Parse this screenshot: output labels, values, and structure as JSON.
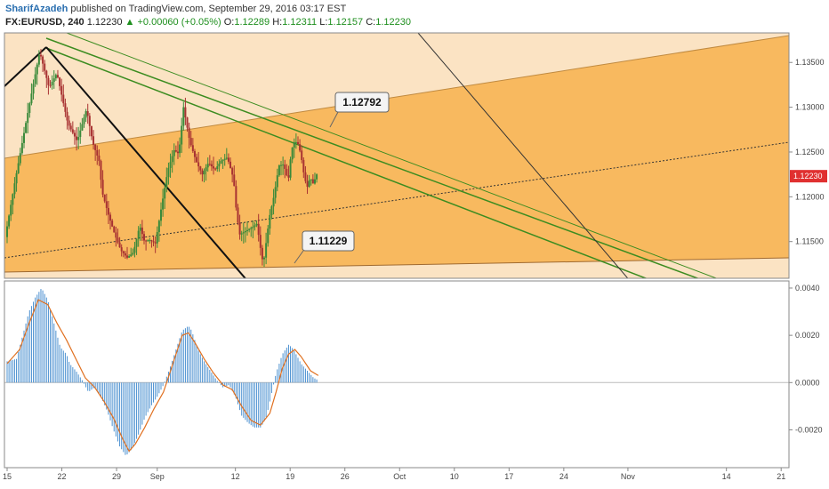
{
  "header": {
    "author": "SharifAzadeh",
    "published": "published on TradingView.com, September 29, 2016 03:17 EST",
    "symbol": "FX:EURUSD, 240",
    "last": "1.12230",
    "change": "+0.00060 (+0.05%)",
    "o_label": "O:",
    "o_value": "1.12289",
    "h_label": "H:",
    "h_value": "1.12311",
    "l_label": "L:",
    "l_value": "1.12157",
    "c_label": "C:",
    "c_value": "1.12230"
  },
  "colors": {
    "channel_fill": "#f8b95f",
    "channel_light": "#fbe3c3",
    "candle_up": "#3a8a3a",
    "candle_down": "#a83232",
    "trend_green": "#3c8c20",
    "hist": "#4b90d0",
    "signal": "#e07020",
    "last_tag": "#e03030"
  },
  "chart_data": [
    {
      "type": "candlestick",
      "y_ticks": [
        "1.13500",
        "1.13000",
        "1.12500",
        "1.12000",
        "1.11500"
      ],
      "ylim": [
        1.1109,
        1.1383
      ],
      "last_price": "1.12230",
      "annotations": [
        {
          "label": "1.12792",
          "value": 1.12792
        },
        {
          "label": "1.11229",
          "value": 1.11229
        }
      ],
      "path": [
        [
          0,
          1.1155
        ],
        [
          6,
          1.1215
        ],
        [
          14,
          1.129
        ],
        [
          22,
          1.1362
        ],
        [
          28,
          1.1322
        ],
        [
          33,
          1.1338
        ],
        [
          40,
          1.1282
        ],
        [
          46,
          1.1262
        ],
        [
          52,
          1.1298
        ],
        [
          56,
          1.126
        ],
        [
          60,
          1.124
        ],
        [
          62,
          1.1205
        ],
        [
          66,
          1.118
        ],
        [
          70,
          1.1158
        ],
        [
          74,
          1.114
        ],
        [
          78,
          1.1132
        ],
        [
          82,
          1.1138
        ],
        [
          86,
          1.1168
        ],
        [
          89,
          1.115
        ],
        [
          92,
          1.1152
        ],
        [
          96,
          1.1148
        ],
        [
          100,
          1.119
        ],
        [
          104,
          1.123
        ],
        [
          108,
          1.1252
        ],
        [
          111,
          1.1248
        ],
        [
          114,
          1.13
        ],
        [
          118,
          1.1262
        ],
        [
          122,
          1.124
        ],
        [
          126,
          1.1225
        ],
        [
          130,
          1.1238
        ],
        [
          134,
          1.123
        ],
        [
          138,
          1.124
        ],
        [
          142,
          1.1244
        ],
        [
          146,
          1.122
        ],
        [
          148,
          1.118
        ],
        [
          150,
          1.1158
        ],
        [
          154,
          1.1162
        ],
        [
          158,
          1.1166
        ],
        [
          161,
          1.117
        ],
        [
          163,
          1.1145
        ],
        [
          165,
          1.1124
        ],
        [
          169,
          1.1178
        ],
        [
          172,
          1.1202
        ],
        [
          175,
          1.1235
        ],
        [
          178,
          1.1236
        ],
        [
          181,
          1.1218
        ],
        [
          183,
          1.1252
        ],
        [
          185,
          1.1262
        ],
        [
          187,
          1.126
        ],
        [
          189,
          1.1248
        ],
        [
          191,
          1.1225
        ],
        [
          193,
          1.121
        ],
        [
          195,
          1.1222
        ],
        [
          197,
          1.1214
        ],
        [
          199,
          1.1225
        ]
      ]
    },
    {
      "type": "bar",
      "indicator": "MACD histogram with signal line",
      "y_ticks": [
        "0.0040",
        "0.0020",
        "0.0000",
        "-0.0020"
      ],
      "ylim": [
        -0.0036,
        0.0043
      ],
      "histogram_path": [
        [
          0,
          0.0009
        ],
        [
          6,
          0.001
        ],
        [
          10,
          0.002
        ],
        [
          14,
          0.003
        ],
        [
          18,
          0.0036
        ],
        [
          22,
          0.004
        ],
        [
          26,
          0.0035
        ],
        [
          30,
          0.0025
        ],
        [
          34,
          0.0015
        ],
        [
          38,
          0.0012
        ],
        [
          40,
          0.0008
        ],
        [
          44,
          0.0005
        ],
        [
          48,
          0.0001
        ],
        [
          52,
          -0.0004
        ],
        [
          56,
          -0.0002
        ],
        [
          60,
          -0.0006
        ],
        [
          64,
          -0.0012
        ],
        [
          68,
          -0.002
        ],
        [
          72,
          -0.0027
        ],
        [
          76,
          -0.0031
        ],
        [
          80,
          -0.0028
        ],
        [
          84,
          -0.0022
        ],
        [
          88,
          -0.0015
        ],
        [
          92,
          -0.001
        ],
        [
          96,
          -0.0006
        ],
        [
          100,
          -0.0001
        ],
        [
          104,
          0.0006
        ],
        [
          108,
          0.0014
        ],
        [
          112,
          0.0022
        ],
        [
          116,
          0.0024
        ],
        [
          118,
          0.0022
        ],
        [
          122,
          0.0014
        ],
        [
          126,
          0.0009
        ],
        [
          130,
          0.0005
        ],
        [
          134,
          0.0001
        ],
        [
          138,
          -0.0002
        ],
        [
          142,
          -0.0001
        ],
        [
          146,
          -0.0006
        ],
        [
          150,
          -0.0014
        ],
        [
          154,
          -0.0017
        ],
        [
          158,
          -0.0019
        ],
        [
          162,
          -0.0019
        ],
        [
          164,
          -0.0017
        ],
        [
          166,
          -0.0014
        ],
        [
          168,
          -0.0008
        ],
        [
          170,
          -0.0002
        ],
        [
          172,
          0.0004
        ],
        [
          174,
          0.0008
        ],
        [
          176,
          0.0012
        ],
        [
          180,
          0.0016
        ],
        [
          182,
          0.0015
        ],
        [
          184,
          0.0013
        ],
        [
          188,
          0.0008
        ],
        [
          192,
          0.0005
        ],
        [
          196,
          0.0002
        ],
        [
          199,
          0.0001
        ]
      ],
      "signal_path": [
        [
          0,
          0.0008
        ],
        [
          8,
          0.0014
        ],
        [
          14,
          0.0025
        ],
        [
          20,
          0.0035
        ],
        [
          26,
          0.0033
        ],
        [
          32,
          0.0025
        ],
        [
          38,
          0.0018
        ],
        [
          44,
          0.001
        ],
        [
          50,
          0.0002
        ],
        [
          56,
          -0.0002
        ],
        [
          62,
          -0.0008
        ],
        [
          68,
          -0.0015
        ],
        [
          74,
          -0.0024
        ],
        [
          78,
          -0.0029
        ],
        [
          82,
          -0.0026
        ],
        [
          88,
          -0.0019
        ],
        [
          94,
          -0.0011
        ],
        [
          100,
          -0.0004
        ],
        [
          104,
          0.0004
        ],
        [
          108,
          0.0012
        ],
        [
          112,
          0.002
        ],
        [
          116,
          0.0021
        ],
        [
          120,
          0.0017
        ],
        [
          126,
          0.001
        ],
        [
          132,
          0.0004
        ],
        [
          138,
          -0.0001
        ],
        [
          144,
          -0.0003
        ],
        [
          150,
          -0.001
        ],
        [
          156,
          -0.0016
        ],
        [
          162,
          -0.0018
        ],
        [
          168,
          -0.0013
        ],
        [
          172,
          -0.0004
        ],
        [
          176,
          0.0006
        ],
        [
          180,
          0.0012
        ],
        [
          184,
          0.0014
        ],
        [
          188,
          0.0011
        ],
        [
          194,
          0.0005
        ],
        [
          199,
          0.0003
        ]
      ]
    }
  ],
  "x_axis": {
    "ticks": [
      {
        "label": "15",
        "value": 0
      },
      {
        "label": "22",
        "value": 35
      },
      {
        "label": "29",
        "value": 70
      },
      {
        "label": "Sep",
        "value": 96
      },
      {
        "label": "12",
        "value": 146
      },
      {
        "label": "19",
        "value": 181
      },
      {
        "label": "26",
        "value": 216
      },
      {
        "label": "Oct",
        "value": 251
      },
      {
        "label": "10",
        "value": 286
      },
      {
        "label": "17",
        "value": 321
      },
      {
        "label": "24",
        "value": 356
      },
      {
        "label": "Nov",
        "value": 397
      },
      {
        "label": "14",
        "value": 460
      },
      {
        "label": "21",
        "value": 495
      }
    ]
  }
}
